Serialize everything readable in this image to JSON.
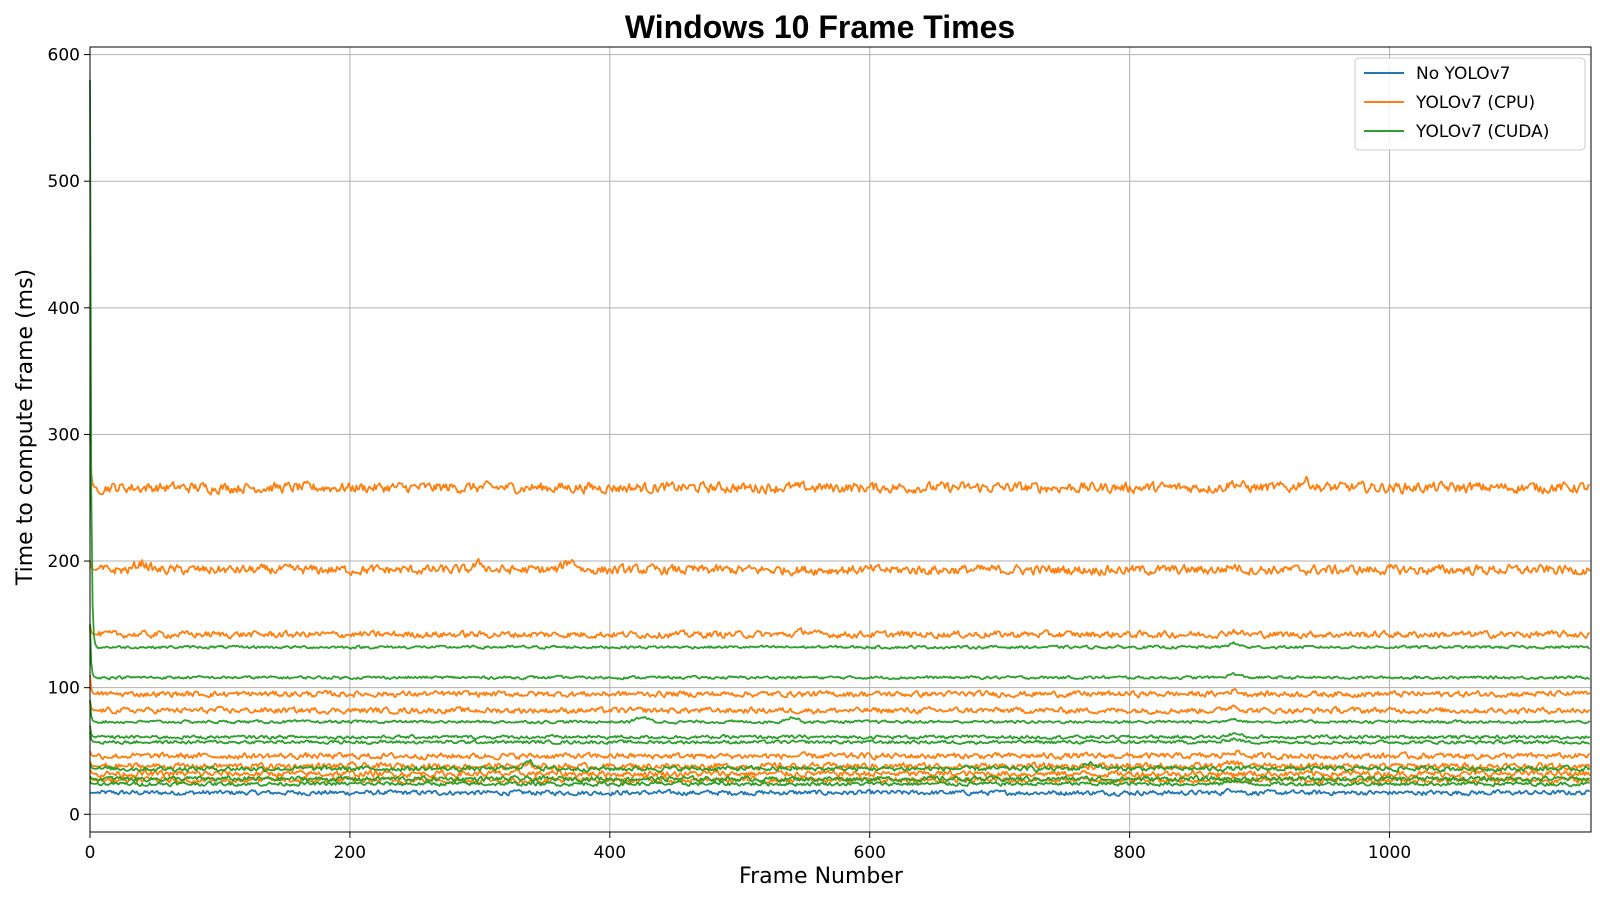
{
  "chart_data": {
    "type": "line",
    "title": "Windows 10 Frame Times",
    "xlabel": "Frame Number",
    "ylabel": "Time to compute frame (ms)",
    "xlim": [
      0,
      1155
    ],
    "ylim": [
      -14,
      606
    ],
    "xticks": [
      0,
      200,
      400,
      600,
      800,
      1000
    ],
    "yticks": [
      0,
      100,
      200,
      300,
      400,
      500,
      600
    ],
    "grid": true,
    "legend_position": "top-right",
    "legend": [
      {
        "label": "No YOLOv7",
        "color": "#1f77b4"
      },
      {
        "label": "YOLOv7 (CPU)",
        "color": "#ff7f0e"
      },
      {
        "label": "YOLOv7 (CUDA)",
        "color": "#2ca02c"
      }
    ],
    "series": [
      {
        "legend_index": 0,
        "color": "#1f77b4",
        "baseline": 17,
        "start": 17,
        "noise": 1.0,
        "bumps": [
          {
            "x": 880,
            "h": 3
          }
        ]
      },
      {
        "legend_index": 1,
        "color": "#ff7f0e",
        "baseline": 258,
        "start": 300,
        "noise": 2.2,
        "bumps": [
          {
            "x": 880,
            "h": 4
          },
          {
            "x": 935,
            "h": 6
          }
        ]
      },
      {
        "legend_index": 1,
        "color": "#ff7f0e",
        "baseline": 193,
        "start": 200,
        "noise": 2.0,
        "bumps": [
          {
            "x": 40,
            "h": 6
          },
          {
            "x": 300,
            "h": 5
          },
          {
            "x": 370,
            "h": 8
          },
          {
            "x": 880,
            "h": 3
          }
        ]
      },
      {
        "legend_index": 1,
        "color": "#ff7f0e",
        "baseline": 142,
        "start": 150,
        "noise": 1.4,
        "bumps": [
          {
            "x": 550,
            "h": 3
          },
          {
            "x": 880,
            "h": 3
          }
        ]
      },
      {
        "legend_index": 1,
        "color": "#ff7f0e",
        "baseline": 95,
        "start": 110,
        "noise": 1.2,
        "bumps": [
          {
            "x": 880,
            "h": 3
          }
        ]
      },
      {
        "legend_index": 1,
        "color": "#ff7f0e",
        "baseline": 82,
        "start": 90,
        "noise": 1.2,
        "bumps": [
          {
            "x": 880,
            "h": 4
          }
        ]
      },
      {
        "legend_index": 1,
        "color": "#ff7f0e",
        "baseline": 46,
        "start": 50,
        "noise": 1.2,
        "bumps": [
          {
            "x": 880,
            "h": 4
          }
        ]
      },
      {
        "legend_index": 1,
        "color": "#ff7f0e",
        "baseline": 38,
        "start": 42,
        "noise": 1.3,
        "bumps": [
          {
            "x": 880,
            "h": 3
          }
        ]
      },
      {
        "legend_index": 1,
        "color": "#ff7f0e",
        "baseline": 32,
        "start": 36,
        "noise": 1.3,
        "bumps": []
      },
      {
        "legend_index": 1,
        "color": "#ff7f0e",
        "baseline": 27,
        "start": 30,
        "noise": 1.2,
        "bumps": []
      },
      {
        "legend_index": 2,
        "color": "#2ca02c",
        "baseline": 132,
        "start": 580,
        "noise": 0.6,
        "bumps": [
          {
            "x": 880,
            "h": 3
          }
        ]
      },
      {
        "legend_index": 2,
        "color": "#2ca02c",
        "baseline": 108,
        "start": 150,
        "noise": 0.6,
        "bumps": [
          {
            "x": 880,
            "h": 3
          }
        ]
      },
      {
        "legend_index": 2,
        "color": "#2ca02c",
        "baseline": 73,
        "start": 90,
        "noise": 0.6,
        "bumps": [
          {
            "x": 425,
            "h": 4
          },
          {
            "x": 540,
            "h": 4
          },
          {
            "x": 880,
            "h": 3
          }
        ]
      },
      {
        "legend_index": 2,
        "color": "#2ca02c",
        "baseline": 61,
        "start": 70,
        "noise": 0.7,
        "bumps": [
          {
            "x": 880,
            "h": 3
          }
        ]
      },
      {
        "legend_index": 2,
        "color": "#2ca02c",
        "baseline": 57,
        "start": 65,
        "noise": 0.7,
        "bumps": [
          {
            "x": 880,
            "h": 3
          }
        ]
      },
      {
        "legend_index": 2,
        "color": "#2ca02c",
        "baseline": 36,
        "start": 40,
        "noise": 1.0,
        "bumps": [
          {
            "x": 338,
            "h": 6
          },
          {
            "x": 770,
            "h": 5
          }
        ]
      },
      {
        "legend_index": 2,
        "color": "#2ca02c",
        "baseline": 28,
        "start": 30,
        "noise": 1.0,
        "bumps": []
      },
      {
        "legend_index": 2,
        "color": "#2ca02c",
        "baseline": 24,
        "start": 26,
        "noise": 0.8,
        "bumps": [
          {
            "x": 880,
            "h": 3
          }
        ]
      }
    ]
  }
}
